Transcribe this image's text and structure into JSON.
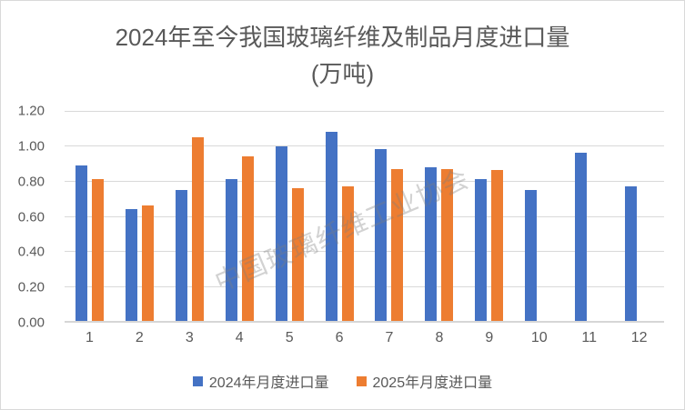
{
  "title": {
    "line1": "2024年至今我国玻璃纤维及制品月度进口量",
    "line2": "(万吨)"
  },
  "watermark": "中国玻璃纤维工业协会",
  "colors": {
    "series_2024": "#4472C4",
    "series_2025": "#ED7D31",
    "gridline": "#D9D9D9",
    "axis_line": "#D6D6D6",
    "tick_label": "#595959",
    "title_text": "#595959",
    "card_border": "#D9D9D9",
    "watermark_text": "rgba(125,125,125,0.35)"
  },
  "chart_data": {
    "type": "bar",
    "title": "2024年至今我国玻璃纤维及制品月度进口量(万吨)",
    "xlabel": "",
    "ylabel": "",
    "categories": [
      "1",
      "2",
      "3",
      "4",
      "5",
      "6",
      "7",
      "8",
      "9",
      "10",
      "11",
      "12"
    ],
    "series": [
      {
        "name": "2024年月度进口量",
        "color": "#4472C4",
        "values": [
          0.89,
          0.64,
          0.75,
          0.81,
          1.0,
          1.08,
          0.98,
          0.88,
          0.81,
          0.75,
          0.96,
          0.77
        ]
      },
      {
        "name": "2025年月度进口量",
        "color": "#ED7D31",
        "values": [
          0.81,
          0.66,
          1.05,
          0.94,
          0.76,
          0.77,
          0.87,
          0.87,
          0.86,
          null,
          null,
          null
        ]
      }
    ],
    "ylim": [
      0,
      1.2
    ],
    "ytick_step": 0.2,
    "ytick_labels": [
      "0.00",
      "0.20",
      "0.40",
      "0.60",
      "0.80",
      "1.00",
      "1.20"
    ],
    "grid": true,
    "legend_position": "bottom"
  },
  "legend": {
    "items": [
      {
        "label": "2024年月度进口量",
        "color": "#4472C4"
      },
      {
        "label": "2025年月度进口量",
        "color": "#ED7D31"
      }
    ]
  }
}
